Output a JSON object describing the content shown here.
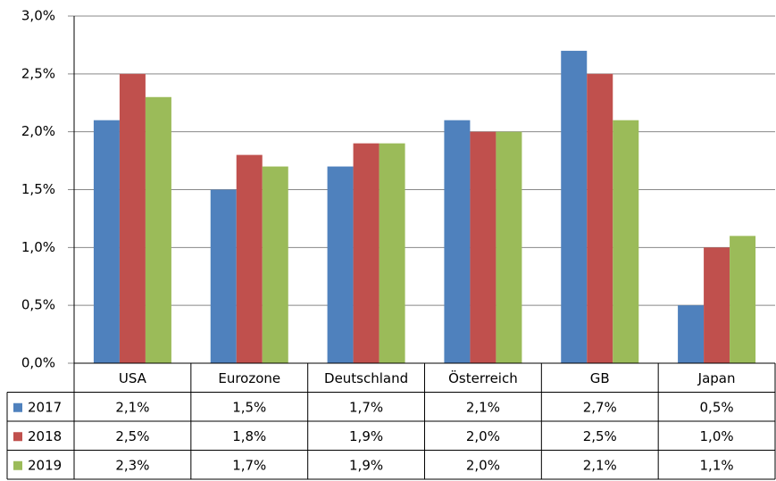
{
  "chart_data": {
    "type": "bar",
    "categories": [
      "USA",
      "Eurozone",
      "Deutschland",
      "Österreich",
      "GB",
      "Japan"
    ],
    "series": [
      {
        "name": "2017",
        "color": "#4f81bd",
        "values": [
          2.1,
          1.5,
          1.7,
          2.1,
          2.7,
          0.5
        ],
        "value_labels": [
          "2,1%",
          "1,5%",
          "1,7%",
          "2,1%",
          "2,7%",
          "0,5%"
        ]
      },
      {
        "name": "2018",
        "color": "#c0504d",
        "values": [
          2.5,
          1.8,
          1.9,
          2.0,
          2.5,
          1.0
        ],
        "value_labels": [
          "2,5%",
          "1,8%",
          "1,9%",
          "2,0%",
          "2,5%",
          "1,0%"
        ]
      },
      {
        "name": "2019",
        "color": "#9bbb59",
        "values": [
          2.3,
          1.7,
          1.9,
          2.0,
          2.1,
          1.1
        ],
        "value_labels": [
          "2,3%",
          "1,7%",
          "1,9%",
          "2,0%",
          "2,1%",
          "1,1%"
        ]
      }
    ],
    "ylim": [
      0,
      3
    ],
    "yticks": [
      {
        "value": 0,
        "label": "0,0%"
      },
      {
        "value": 0.5,
        "label": "0,5%"
      },
      {
        "value": 1,
        "label": "1,0%"
      },
      {
        "value": 1.5,
        "label": "1,5%"
      },
      {
        "value": 2,
        "label": "2,0%"
      },
      {
        "value": 2.5,
        "label": "2,5%"
      },
      {
        "value": 3,
        "label": "3,0%"
      }
    ],
    "grid": true
  }
}
